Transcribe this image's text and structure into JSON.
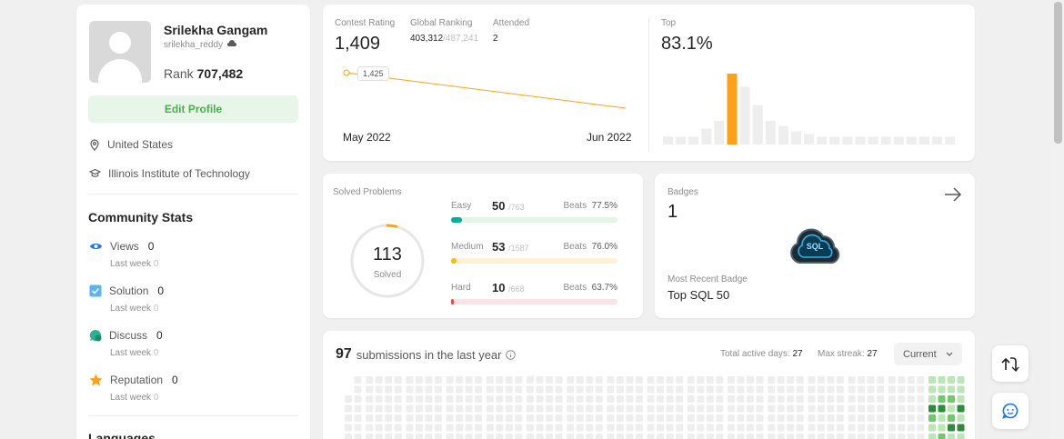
{
  "profile": {
    "name": "Srilekha Gangam",
    "username": "srilekha_reddy",
    "rank_label": "Rank",
    "rank_value": "707,482",
    "edit_label": "Edit Profile",
    "location": "United States",
    "school": "Illinois Institute of Technology"
  },
  "community": {
    "title": "Community Stats",
    "items": [
      {
        "label": "Views",
        "value": "0",
        "sub": "Last week",
        "sub_value": "0",
        "icon": "eye-icon",
        "color": "#1677ff"
      },
      {
        "label": "Solution",
        "value": "0",
        "sub": "Last week",
        "sub_value": "0",
        "icon": "solution-icon",
        "color": "#5ab4ef"
      },
      {
        "label": "Discuss",
        "value": "0",
        "sub": "Last week",
        "sub_value": "0",
        "icon": "discuss-icon",
        "color": "#2eb191"
      },
      {
        "label": "Reputation",
        "value": "0",
        "sub": "Last week",
        "sub_value": "0",
        "icon": "star-icon",
        "color": "#ffa116"
      }
    ]
  },
  "languages_title": "Languages",
  "contest": {
    "rating_label": "Contest Rating",
    "rating": "1,409",
    "ranking_label": "Global Ranking",
    "ranking": "403,312",
    "ranking_total": "/487,241",
    "attended_label": "Attended",
    "attended": "2",
    "point_label": "1,425",
    "x_start": "May 2022",
    "x_end": "Jun 2022",
    "top_label": "Top",
    "top_value": "83.1%",
    "line_color": "#ffa116"
  },
  "chart_data": {
    "type": "bar",
    "values": [
      3,
      3,
      3,
      6,
      9,
      27,
      22,
      15,
      9,
      7,
      5,
      4,
      3,
      3,
      3,
      3,
      3,
      3,
      3,
      3,
      3,
      3,
      3
    ],
    "highlight_index": 5,
    "highlight_color": "#ffa116",
    "bar_color": "#eeeeee"
  },
  "solved": {
    "title": "Solved Problems",
    "total": "113",
    "total_label": "Solved",
    "ring_progress": 0.04,
    "beats_label": "Beats",
    "rows": [
      {
        "name": "Easy",
        "count": "50",
        "total": "/763",
        "beats": "77.5%",
        "fraction": 0.065,
        "color": "#00af9b",
        "track": "#e3f5e5"
      },
      {
        "name": "Medium",
        "count": "53",
        "total": "/1587",
        "beats": "76.0%",
        "fraction": 0.033,
        "color": "#ffb800",
        "track": "#fff1d1"
      },
      {
        "name": "Hard",
        "count": "10",
        "total": "/668",
        "beats": "63.7%",
        "fraction": 0.015,
        "color": "#ef4743",
        "track": "#fde3e3"
      }
    ]
  },
  "badges": {
    "title": "Badges",
    "count": "1",
    "badge_text": "SQL",
    "recent_label": "Most Recent Badge",
    "recent_name": "Top SQL 50"
  },
  "submissions": {
    "count": "97",
    "text": "submissions in the last year",
    "active_label": "Total active days:",
    "active_value": "27",
    "streak_label": "Max streak:",
    "streak_value": "27",
    "dropdown": "Current"
  }
}
